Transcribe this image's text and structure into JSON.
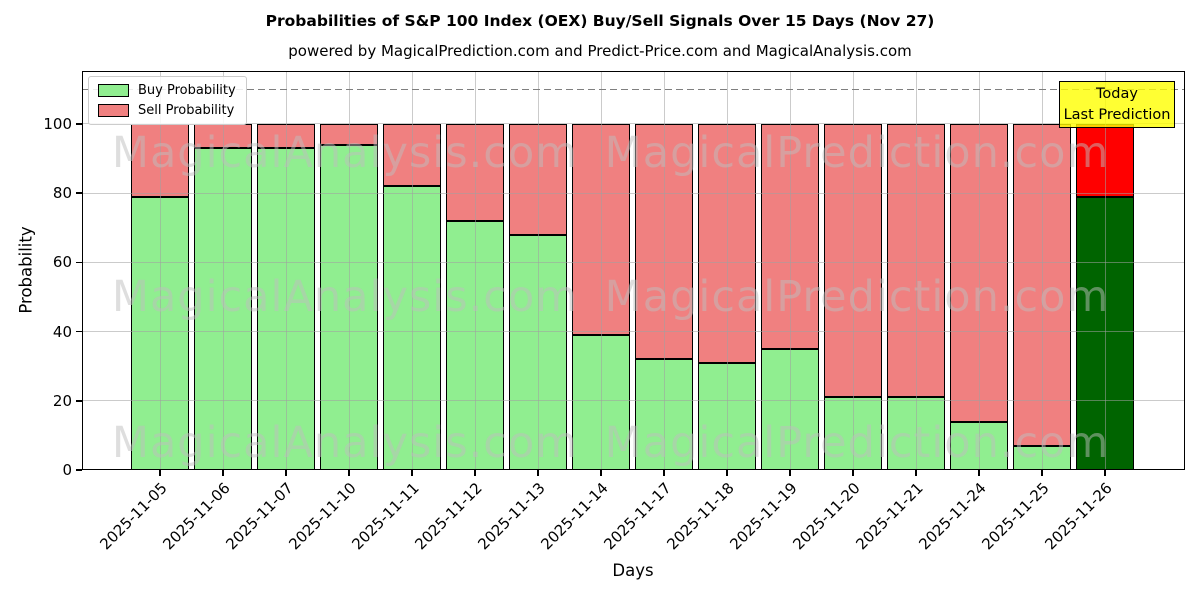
{
  "chart_data": {
    "type": "bar",
    "stacked": true,
    "title": "Probabilities of S&P 100 Index (OEX) Buy/Sell Signals Over 15 Days (Nov 27)",
    "subtitle": "powered by MagicalPrediction.com and Predict-Price.com and MagicalAnalysis.com",
    "xlabel": "Days",
    "ylabel": "Probability",
    "yticks": [
      0,
      20,
      40,
      60,
      80,
      100
    ],
    "ylim": [
      0,
      115.3
    ],
    "grid": true,
    "legend_position": "upper-left",
    "categories": [
      "2025-11-05",
      "2025-11-06",
      "2025-11-07",
      "2025-11-10",
      "2025-11-11",
      "2025-11-12",
      "2025-11-13",
      "2025-11-14",
      "2025-11-17",
      "2025-11-18",
      "2025-11-19",
      "2025-11-20",
      "2025-11-21",
      "2025-11-24",
      "2025-11-25",
      "2025-11-26"
    ],
    "series": [
      {
        "name": "Buy Probability",
        "color": "#90ee90",
        "values": [
          79,
          93,
          93,
          94,
          82,
          72,
          68,
          39,
          32,
          31,
          35,
          21,
          21,
          14,
          7,
          79
        ]
      },
      {
        "name": "Sell Probability",
        "color": "#f08080",
        "values": [
          21,
          7,
          7,
          6,
          18,
          28,
          32,
          61,
          68,
          69,
          65,
          79,
          79,
          86,
          93,
          21
        ]
      }
    ],
    "highlight_last_bar": {
      "buy_color": "#006400",
      "sell_color": "#ff0000"
    },
    "dashed_guide_y": 110,
    "annotation_box": {
      "text_lines": [
        "Today",
        "Last Prediction"
      ],
      "bg_color": "#ffff00"
    },
    "watermark_left": "MagicalAnalysis.com",
    "watermark_right": "MagicalPrediction.com",
    "edge_color": "#000000"
  }
}
